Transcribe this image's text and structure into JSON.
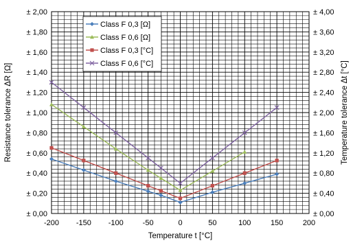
{
  "chart_data": {
    "type": "line",
    "xlabel": "Temperature t [°C]",
    "ylabel": "Resistance tolerance ΔR [Ω]",
    "y2label": "Temperature tolerance Δt [°C]",
    "xlim": [
      -200,
      200
    ],
    "xticks": [
      -200,
      -150,
      -100,
      -50,
      0,
      50,
      100,
      150,
      200
    ],
    "ylim": [
      0,
      2.0
    ],
    "y2lim": [
      0,
      4.0
    ],
    "yticks": [
      "± 0,00",
      "± 0,20",
      "± 0,40",
      "± 0,60",
      "± 0,80",
      "± 1,00",
      "± 1,20",
      "± 1,40",
      "± 1,60",
      "± 1,80",
      "± 2,00"
    ],
    "y2ticks": [
      "± 0,00",
      "± 0,40",
      "± 0,80",
      "± 1,20",
      "± 1,60",
      "± 2,00",
      "± 2,40",
      "± 2,80",
      "± 3,20",
      "± 3,60",
      "± 4,00"
    ],
    "grid": true,
    "legend_position": "top-left inside plot",
    "series": [
      {
        "name": "Class F 0,3 [Ω]",
        "axis": "left",
        "color": "#4a7ebb",
        "marker": "diamond",
        "x": [
          -200,
          -150,
          -100,
          -50,
          -30,
          0,
          50,
          100,
          150
        ],
        "y": [
          0.54,
          0.43,
          0.32,
          0.22,
          0.18,
          0.11,
          0.21,
          0.3,
          0.39
        ]
      },
      {
        "name": "Class F 0,6 [Ω]",
        "axis": "left",
        "color": "#9bbb59",
        "marker": "triangle",
        "x": [
          -200,
          -150,
          -100,
          -50,
          -30,
          0,
          50,
          100
        ],
        "y": [
          1.08,
          0.86,
          0.64,
          0.43,
          0.35,
          0.23,
          0.42,
          0.61
        ]
      },
      {
        "name": "Class F 0,3 [°C]",
        "axis": "right",
        "color": "#c0504d",
        "marker": "square",
        "x": [
          -200,
          -150,
          -100,
          -50,
          -30,
          0,
          50,
          100,
          150
        ],
        "y": [
          1.3,
          1.05,
          0.8,
          0.55,
          0.45,
          0.3,
          0.55,
          0.8,
          1.05
        ]
      },
      {
        "name": "Class F 0,6 [°C]",
        "axis": "right",
        "color": "#8064a2",
        "marker": "x",
        "x": [
          -200,
          -150,
          -100,
          -50,
          -30,
          0,
          50,
          100,
          150
        ],
        "y": [
          2.6,
          2.1,
          1.6,
          1.1,
          0.9,
          0.6,
          1.1,
          1.6,
          2.1
        ]
      }
    ]
  }
}
